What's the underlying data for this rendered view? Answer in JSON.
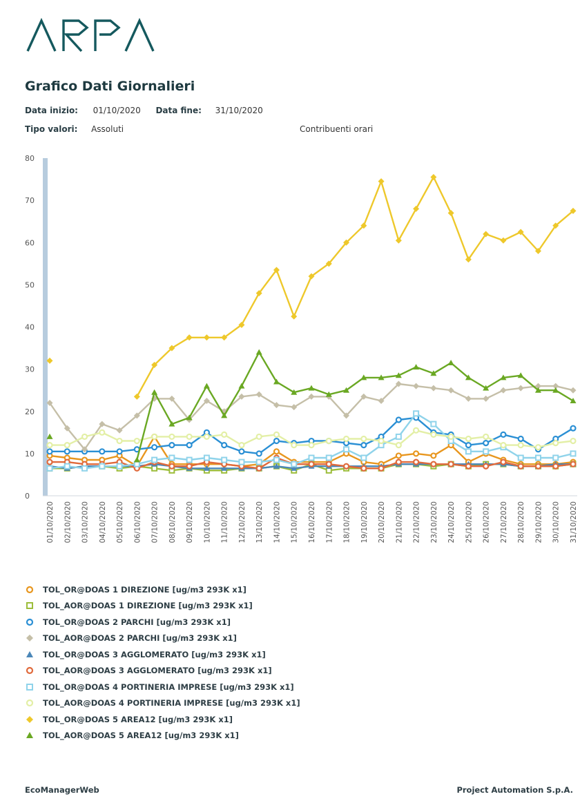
{
  "header": {
    "logo_text": "ARPA"
  },
  "page": {
    "title": "Grafico Dati Giornalieri",
    "start_label": "Data inizio:",
    "start_value": "01/10/2020",
    "end_label": "Data fine:",
    "end_value": "31/10/2020",
    "type_label": "Tipo valori:",
    "type_value": "Assoluti",
    "contrib_label": "Contribuenti orari"
  },
  "footer": {
    "left": "EcoManagerWeb",
    "right": "Project Automation S.p.A."
  },
  "chart_data": {
    "type": "line",
    "title": "",
    "xlabel": "",
    "ylabel": "",
    "ylim": [
      0,
      80
    ],
    "yticks": [
      0,
      10,
      20,
      30,
      40,
      50,
      60,
      70,
      80
    ],
    "grid": false,
    "legend_position": "bottom",
    "categories": [
      "01/10/2020",
      "02/10/2020",
      "03/10/2020",
      "04/10/2020",
      "05/10/2020",
      "06/10/2020",
      "07/10/2020",
      "08/10/2020",
      "09/10/2020",
      "10/10/2020",
      "11/10/2020",
      "12/10/2020",
      "13/10/2020",
      "14/10/2020",
      "15/10/2020",
      "16/10/2020",
      "17/10/2020",
      "18/10/2020",
      "19/10/2020",
      "20/10/2020",
      "21/10/2020",
      "22/10/2020",
      "23/10/2020",
      "24/10/2020",
      "25/10/2020",
      "26/10/2020",
      "27/10/2020",
      "28/10/2020",
      "29/10/2020",
      "30/10/2020",
      "31/10/2020"
    ],
    "series": [
      {
        "name": "TOL_OR@DOAS 1 DIREZIONE [ug/m3 293K x1]",
        "color": "#e8961e",
        "marker": "circle",
        "values": [
          9.5,
          9,
          8.5,
          8.5,
          9.5,
          7,
          14,
          7.5,
          7.5,
          7.5,
          7.5,
          7,
          7.5,
          10.5,
          8,
          8,
          8,
          10,
          8,
          7.5,
          9.5,
          10,
          9.5,
          12,
          8,
          10,
          8.5,
          7.5,
          7.5,
          7.5,
          8
        ]
      },
      {
        "name": "TOL_AOR@DOAS 1 DIREZIONE [ug/m3 293K x1]",
        "color": "#9cbd3a",
        "marker": "square",
        "values": [
          6.5,
          6.5,
          7,
          7,
          6.5,
          7,
          6.5,
          6,
          6.5,
          6,
          6,
          6.5,
          6.5,
          7,
          6,
          7.5,
          6,
          6.5,
          6.5,
          6.5,
          7.5,
          7.5,
          7,
          7.5,
          7,
          7.5,
          7.5,
          7,
          7,
          7,
          7.5
        ]
      },
      {
        "name": "TOL_OR@DOAS 2 PARCHI [ug/m3 293K x1]",
        "color": "#2a8fd4",
        "marker": "circle",
        "values": [
          10.5,
          10.5,
          10.5,
          10.5,
          10.5,
          11,
          11.5,
          12,
          12,
          15,
          12,
          10.5,
          10,
          13,
          12.5,
          13,
          13,
          12.5,
          12,
          14,
          18,
          18.5,
          15,
          14.5,
          12,
          12.5,
          14.5,
          13.5,
          11,
          13.5,
          16
        ]
      },
      {
        "name": "TOL_AOR@DOAS 2 PARCHI [ug/m3 293K x1]",
        "color": "#c5bfa8",
        "marker": "diamond",
        "values": [
          22,
          16,
          11,
          17,
          15.5,
          19,
          23,
          23,
          18,
          22.5,
          20,
          23.5,
          24,
          21.5,
          21,
          23.5,
          23.5,
          19,
          23.5,
          22.5,
          26.5,
          26,
          25.5,
          25,
          23,
          23,
          25,
          25.5,
          26,
          26,
          25
        ]
      },
      {
        "name": "TOL_OR@DOAS 3 AGGLOMERATO [ug/m3 293K x1]",
        "color": "#4b87b8",
        "marker": "triangle",
        "values": [
          7,
          6.5,
          7,
          7,
          7,
          7,
          7.5,
          7,
          6.5,
          6.5,
          6.5,
          6.5,
          6.5,
          7,
          6.5,
          7,
          7,
          7,
          7,
          7,
          7.5,
          7.5,
          7.5,
          7.5,
          7.5,
          7.5,
          7.5,
          7,
          7,
          7.5,
          7.5
        ]
      },
      {
        "name": "TOL_AOR@DOAS 3 AGGLOMERATO [ug/m3 293K x1]",
        "color": "#e06a3c",
        "marker": "circle",
        "values": [
          8,
          8,
          7.5,
          7.5,
          8,
          6.5,
          8,
          7,
          7,
          8,
          7.5,
          7,
          6.5,
          9,
          7.5,
          7.5,
          7.5,
          7,
          6.5,
          6.5,
          8,
          8,
          7.5,
          7.5,
          7,
          7,
          8,
          7,
          7,
          7,
          7.5
        ]
      },
      {
        "name": "TOL_OR@DOAS 4 PORTINERIA IMPRESE [ug/m3 293K x1]",
        "color": "#8fd3ea",
        "marker": "square",
        "values": [
          6.5,
          7,
          6.5,
          7,
          7,
          7.5,
          8.5,
          9,
          8.5,
          9,
          8.5,
          8,
          8,
          8.5,
          7.5,
          9,
          9,
          11,
          9,
          12,
          14,
          19.5,
          17,
          13,
          10.5,
          10.5,
          11.5,
          9,
          9,
          9,
          10
        ]
      },
      {
        "name": "TOL_AOR@DOAS 4 PORTINERIA IMPRESE [ug/m3 293K x1]",
        "color": "#e3efa6",
        "marker": "circle",
        "values": [
          12,
          12,
          14,
          15,
          13,
          13,
          14,
          14,
          14,
          14,
          14.5,
          12,
          14,
          14.5,
          12,
          12,
          13,
          13.5,
          13.5,
          13,
          12,
          15.5,
          14.5,
          14,
          13.5,
          14,
          12,
          12,
          11.5,
          12.5,
          13
        ]
      },
      {
        "name": "TOL_OR@DOAS 5 AREA12 [ug/m3 293K x1]",
        "color": "#eec82b",
        "marker": "diamond",
        "values": [
          32,
          null,
          null,
          null,
          null,
          23.5,
          31,
          35,
          37.5,
          37.5,
          37.5,
          40.5,
          48,
          53.5,
          42.5,
          52,
          55,
          60,
          64,
          74.5,
          60.5,
          68,
          75.5,
          67,
          56,
          62,
          60.5,
          62.5,
          58,
          64,
          67.5
        ]
      },
      {
        "name": "TOL_AOR@DOAS 5 AREA12 [ug/m3 293K x1]",
        "color": "#6aa823",
        "marker": "triangle",
        "values": [
          14,
          null,
          null,
          null,
          null,
          8.5,
          24.5,
          17,
          18.5,
          26,
          19,
          26,
          34,
          27,
          24.5,
          25.5,
          24,
          25,
          28,
          28,
          28.5,
          30.5,
          29,
          31.5,
          28,
          25.5,
          28,
          28.5,
          25,
          25,
          22.5
        ]
      }
    ]
  }
}
